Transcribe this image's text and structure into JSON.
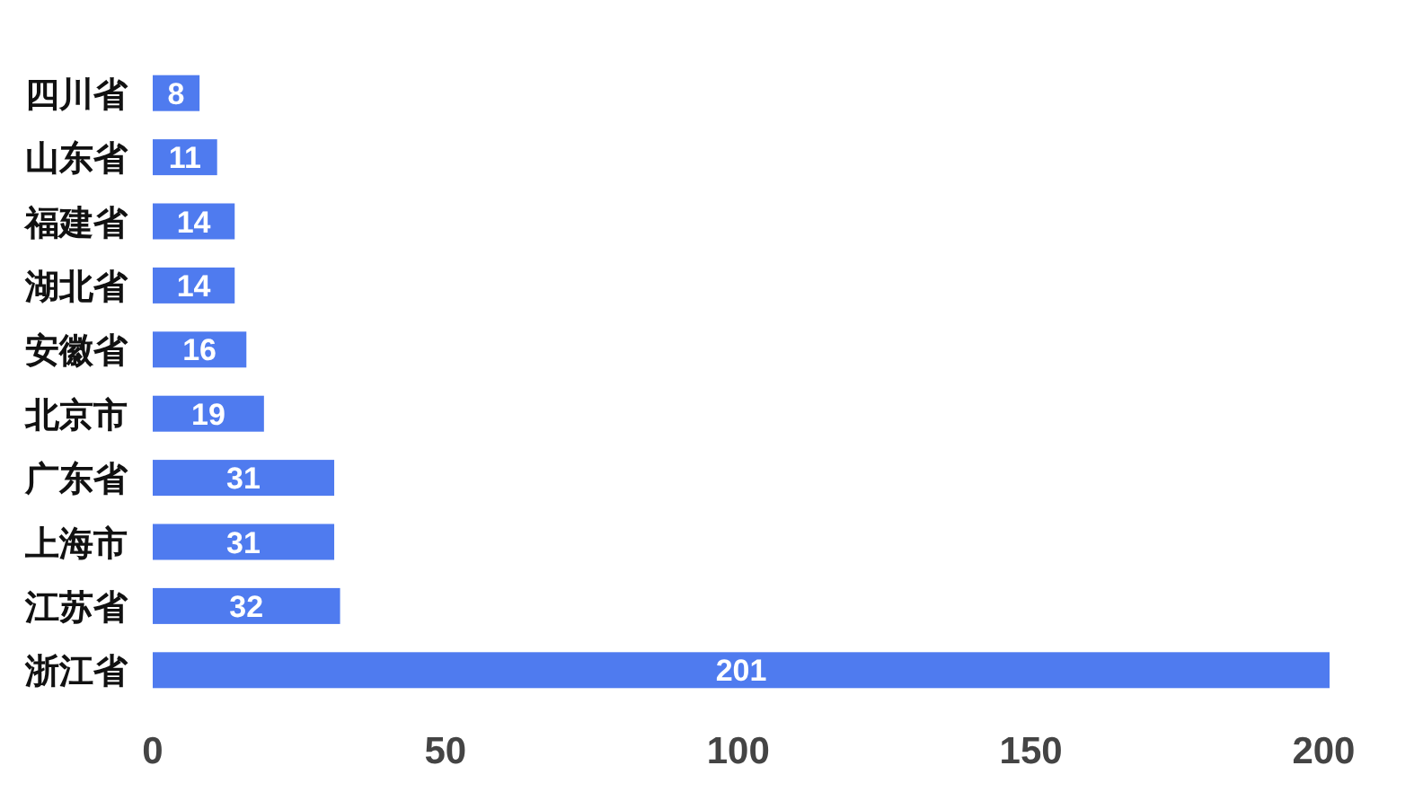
{
  "chart_data": {
    "type": "bar",
    "orientation": "horizontal",
    "categories": [
      "四川省",
      "山东省",
      "福建省",
      "湖北省",
      "安徽省",
      "北京市",
      "广东省",
      "上海市",
      "江苏省",
      "浙江省"
    ],
    "values": [
      8,
      11,
      14,
      14,
      16,
      19,
      31,
      31,
      32,
      201
    ],
    "color": "#4f7bef",
    "xlim": [
      0,
      201
    ],
    "xticks": [
      0,
      50,
      100,
      150,
      200
    ],
    "data_labels": true,
    "grid": false
  }
}
